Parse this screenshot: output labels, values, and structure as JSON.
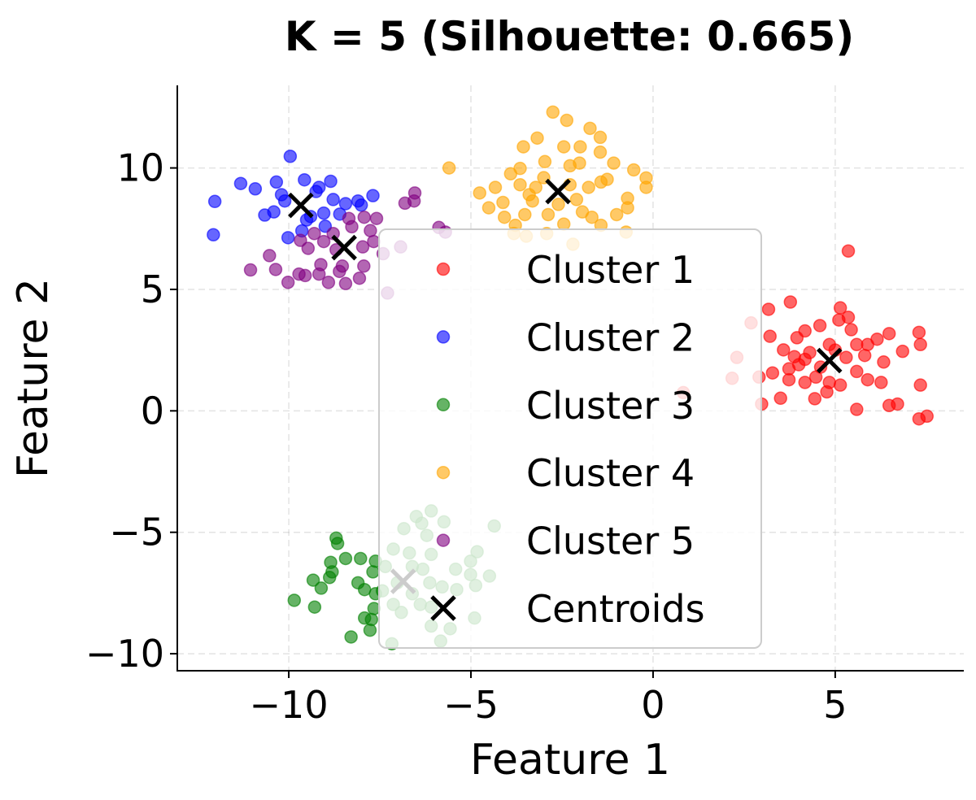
{
  "chart_data": {
    "type": "scatter",
    "title": "K = 5 (Silhouette: 0.665)",
    "xlabel": "Feature 1",
    "ylabel": "Feature 2",
    "xlim": [
      -13.06,
      8.53
    ],
    "ylim": [
      -10.7,
      13.4
    ],
    "grid": true,
    "legend_position": "center",
    "x_ticks": [
      {
        "value": -10,
        "label": "−10"
      },
      {
        "value": -5,
        "label": "−5"
      },
      {
        "value": 0,
        "label": "0"
      },
      {
        "value": 5,
        "label": "5"
      }
    ],
    "y_ticks": [
      {
        "value": -10,
        "label": "−10"
      },
      {
        "value": -5,
        "label": "−5"
      },
      {
        "value": 0,
        "label": "0"
      },
      {
        "value": 5,
        "label": "5"
      },
      {
        "value": 10,
        "label": "10"
      }
    ],
    "series": [
      {
        "name": "Cluster 1",
        "color": "#ff0000",
        "points": [
          [
            5.36,
            6.58
          ],
          [
            3.77,
            4.48
          ],
          [
            3.17,
            4.18
          ],
          [
            5.14,
            4.24
          ],
          [
            5.36,
            3.85
          ],
          [
            5.1,
            3.74
          ],
          [
            3.21,
            3.07
          ],
          [
            7.3,
            3.23
          ],
          [
            7.34,
            2.73
          ],
          [
            6.48,
            3.18
          ],
          [
            5.44,
            3.34
          ],
          [
            6.85,
            2.45
          ],
          [
            4.17,
            3.29
          ],
          [
            4.58,
            3.51
          ],
          [
            3.95,
            3.01
          ],
          [
            3.58,
            2.51
          ],
          [
            3.88,
            2.23
          ],
          [
            4.17,
            2.12
          ],
          [
            4.84,
            2.73
          ],
          [
            5.59,
            2.73
          ],
          [
            5.89,
            2.73
          ],
          [
            5.81,
            2.28
          ],
          [
            6.15,
            2.95
          ],
          [
            6.33,
            2.01
          ],
          [
            3.28,
            1.56
          ],
          [
            3.73,
            1.73
          ],
          [
            3.73,
            1.28
          ],
          [
            4.17,
            1.17
          ],
          [
            4.47,
            1.39
          ],
          [
            4.84,
            1.17
          ],
          [
            5.14,
            1.06
          ],
          [
            5.59,
            1.62
          ],
          [
            5.89,
            1.28
          ],
          [
            6.26,
            1.17
          ],
          [
            4.77,
            0.78
          ],
          [
            4.44,
            0.5
          ],
          [
            3.5,
            0.52
          ],
          [
            5.59,
            0.06
          ],
          [
            6.48,
            0.22
          ],
          [
            6.71,
            0.28
          ],
          [
            7.34,
            1.06
          ],
          [
            7.3,
            -0.33
          ],
          [
            7.52,
            -0.22
          ],
          [
            2.91,
            1.39
          ],
          [
            2.69,
            3.62
          ],
          [
            2.3,
            2.2
          ],
          [
            2.17,
            1.34
          ],
          [
            2.98,
            0.28
          ],
          [
            0.83,
            0.75
          ],
          [
            4.3,
            2.4
          ],
          [
            5.3,
            2.2
          ],
          [
            4.6,
            1.8
          ],
          [
            5.0,
            2.5
          ],
          [
            4.0,
            1.9
          ]
        ]
      },
      {
        "name": "Cluster 2",
        "color": "#0000ff",
        "points": [
          [
            -12.03,
            8.62
          ],
          [
            -12.07,
            7.25
          ],
          [
            -11.32,
            9.36
          ],
          [
            -10.92,
            9.14
          ],
          [
            -10.34,
            9.42
          ],
          [
            -9.96,
            10.48
          ],
          [
            -9.57,
            9.51
          ],
          [
            -9.17,
            9.2
          ],
          [
            -8.85,
            9.45
          ],
          [
            -7.69,
            8.86
          ],
          [
            -10.11,
            8.64
          ],
          [
            -10.66,
            8.06
          ],
          [
            -10.41,
            8.19
          ],
          [
            -10.02,
            7.13
          ],
          [
            -9.64,
            7.41
          ],
          [
            -9.51,
            7.86
          ],
          [
            -9.04,
            8.14
          ],
          [
            -8.78,
            8.7
          ],
          [
            -8.44,
            8.53
          ],
          [
            -8.1,
            8.64
          ],
          [
            -8.01,
            8.47
          ],
          [
            -9.25,
            9.03
          ],
          [
            -9.4,
            8.0
          ],
          [
            -9.0,
            7.6
          ],
          [
            -8.6,
            8.1
          ],
          [
            -10.2,
            8.9
          ]
        ]
      },
      {
        "name": "Cluster 3",
        "color": "#008000",
        "points": [
          [
            -8.7,
            -5.24
          ],
          [
            -8.66,
            -5.46
          ],
          [
            -9.85,
            -7.8
          ],
          [
            -9.33,
            -6.97
          ],
          [
            -9.29,
            -8.08
          ],
          [
            -9.11,
            -7.3
          ],
          [
            -8.85,
            -6.24
          ],
          [
            -8.81,
            -6.63
          ],
          [
            -8.88,
            -6.86
          ],
          [
            -8.44,
            -6.08
          ],
          [
            -8.03,
            -6.08
          ],
          [
            -8.1,
            -7.08
          ],
          [
            -7.92,
            -7.36
          ],
          [
            -8.29,
            -9.31
          ],
          [
            -7.77,
            -9.03
          ],
          [
            -7.92,
            -8.53
          ],
          [
            -7.73,
            -8.59
          ],
          [
            -7.66,
            -8.14
          ],
          [
            -7.62,
            -7.53
          ],
          [
            -7.69,
            -6.63
          ],
          [
            -7.62,
            -6.19
          ],
          [
            -6.5,
            -4.35
          ],
          [
            -6.09,
            -4.12
          ],
          [
            -6.35,
            -4.63
          ],
          [
            -5.74,
            -4.57
          ],
          [
            -6.84,
            -4.85
          ],
          [
            -6.21,
            -5.13
          ],
          [
            -4.36,
            -4.74
          ],
          [
            -7.13,
            -5.69
          ],
          [
            -6.69,
            -5.85
          ],
          [
            -6.09,
            -5.91
          ],
          [
            -4.83,
            -5.8
          ],
          [
            -5.01,
            -6.19
          ],
          [
            -5.42,
            -6.52
          ],
          [
            -5.01,
            -6.74
          ],
          [
            -4.49,
            -6.8
          ],
          [
            -7.35,
            -6.41
          ],
          [
            -6.61,
            -6.41
          ],
          [
            -6.32,
            -6.52
          ],
          [
            -6.13,
            -7.08
          ],
          [
            -5.79,
            -7.25
          ],
          [
            -5.39,
            -7.36
          ],
          [
            -4.87,
            -7.19
          ],
          [
            -7.02,
            -7.08
          ],
          [
            -7.43,
            -7.41
          ],
          [
            -6.61,
            -7.53
          ],
          [
            -7.13,
            -7.97
          ],
          [
            -6.91,
            -8.3
          ],
          [
            -6.39,
            -7.97
          ],
          [
            -6.09,
            -8.08
          ],
          [
            -6.09,
            -8.86
          ],
          [
            -5.57,
            -8.97
          ],
          [
            -4.9,
            -8.53
          ],
          [
            -5.83,
            -9.48
          ],
          [
            -7.17,
            -9.59
          ]
        ]
      },
      {
        "name": "Cluster 4",
        "color": "#ffa500",
        "points": [
          [
            -2.75,
            12.3
          ],
          [
            -2.37,
            11.96
          ],
          [
            -1.73,
            11.63
          ],
          [
            -1.45,
            11.26
          ],
          [
            -3.18,
            11.23
          ],
          [
            -3.56,
            10.87
          ],
          [
            -2.45,
            10.87
          ],
          [
            -2.0,
            10.87
          ],
          [
            -1.45,
            10.65
          ],
          [
            -5.6,
            10.0
          ],
          [
            -0.53,
            9.92
          ],
          [
            -0.19,
            9.59
          ],
          [
            -0.19,
            9.2
          ],
          [
            -4.76,
            8.97
          ],
          [
            -4.33,
            9.2
          ],
          [
            -3.91,
            9.76
          ],
          [
            -3.65,
            9.98
          ],
          [
            -2.97,
            10.26
          ],
          [
            -2.28,
            10.09
          ],
          [
            -2.02,
            10.2
          ],
          [
            -1.08,
            10.2
          ],
          [
            -1.26,
            9.53
          ],
          [
            -4.51,
            8.36
          ],
          [
            -4.12,
            8.58
          ],
          [
            -4.08,
            7.97
          ],
          [
            -3.78,
            7.64
          ],
          [
            -3.52,
            8.08
          ],
          [
            -3.31,
            8.64
          ],
          [
            -2.88,
            8.08
          ],
          [
            -2.45,
            7.69
          ],
          [
            -1.94,
            8.19
          ],
          [
            -1.68,
            7.97
          ],
          [
            -1.43,
            7.64
          ],
          [
            -1.0,
            8.08
          ],
          [
            -0.7,
            8.75
          ],
          [
            -0.7,
            8.36
          ],
          [
            -3.65,
            9.31
          ],
          [
            -3.22,
            9.2
          ],
          [
            -2.28,
            9.31
          ],
          [
            -1.77,
            9.2
          ],
          [
            -1.43,
            9.42
          ],
          [
            -3.82,
            7.3
          ],
          [
            -3.48,
            7.19
          ],
          [
            -2.92,
            7.3
          ],
          [
            -2.2,
            6.86
          ],
          [
            -0.74,
            7.36
          ],
          [
            -3.0,
            9.6
          ],
          [
            -2.6,
            8.5
          ],
          [
            -3.4,
            8.9
          ],
          [
            -2.1,
            8.7
          ]
        ]
      },
      {
        "name": "Cluster 5",
        "color": "#800080",
        "points": [
          [
            -6.54,
            8.97
          ],
          [
            -6.81,
            8.55
          ],
          [
            -6.56,
            8.64
          ],
          [
            -5.88,
            7.55
          ],
          [
            -5.7,
            7.36
          ],
          [
            -6.93,
            6.75
          ],
          [
            -7.41,
            6.47
          ],
          [
            -7.29,
            4.85
          ],
          [
            -10.53,
            6.39
          ],
          [
            -11.05,
            5.8
          ],
          [
            -10.36,
            5.82
          ],
          [
            -10.02,
            5.29
          ],
          [
            -9.72,
            5.63
          ],
          [
            -9.55,
            5.57
          ],
          [
            -9.12,
            6.02
          ],
          [
            -8.91,
            5.29
          ],
          [
            -8.44,
            5.24
          ],
          [
            -8.06,
            5.46
          ],
          [
            -7.94,
            5.96
          ],
          [
            -8.35,
            7.92
          ],
          [
            -7.93,
            7.97
          ],
          [
            -7.59,
            7.92
          ],
          [
            -8.27,
            7.58
          ],
          [
            -7.76,
            7.42
          ],
          [
            -9.68,
            7.02
          ],
          [
            -9.3,
            7.3
          ],
          [
            -9.04,
            6.97
          ],
          [
            -9.47,
            6.69
          ],
          [
            -8.78,
            7.3
          ],
          [
            -8.7,
            6.63
          ],
          [
            -7.97,
            6.75
          ],
          [
            -7.67,
            6.97
          ],
          [
            -8.53,
            5.96
          ],
          [
            -8.61,
            5.74
          ],
          [
            -9.17,
            5.63
          ]
        ]
      }
    ],
    "centroids": {
      "name": "Centroids",
      "color": "#000000",
      "points": [
        [
          4.84,
          2.07
        ],
        [
          -9.67,
          8.46
        ],
        [
          -6.86,
          -7.02
        ],
        [
          -2.61,
          9.03
        ],
        [
          -8.48,
          6.72
        ]
      ]
    }
  }
}
